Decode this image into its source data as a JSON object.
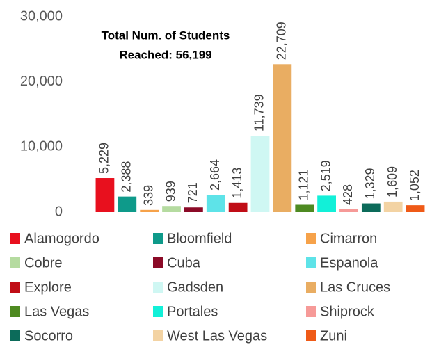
{
  "chart_data": {
    "type": "bar",
    "annotation": [
      "Total Num. of Students",
      "Reached: 56,199"
    ],
    "categories": [
      "Alamogordo",
      "Bloomfield",
      "Cimarron",
      "Cobre",
      "Cuba",
      "Espanola",
      "Explore",
      "Gadsden",
      "Las Cruces",
      "Las Vegas",
      "Portales",
      "Shiprock",
      "Socorro",
      "West Las Vegas",
      "Zuni"
    ],
    "values": [
      5229,
      2388,
      339,
      939,
      721,
      2664,
      1413,
      11739,
      22709,
      1121,
      2519,
      428,
      1329,
      1609,
      1052
    ],
    "value_labels": [
      "5,229",
      "2,388",
      "339",
      "939",
      "721",
      "2,664",
      "1,413",
      "11,739",
      "22,709",
      "1,121",
      "2,519",
      "428",
      "1,329",
      "1,609",
      "1,052"
    ],
    "colors": [
      "#e8101e",
      "#0e9a8a",
      "#f6a24a",
      "#b5dba0",
      "#8b0a27",
      "#5ee3e8",
      "#c00d16",
      "#cff7f3",
      "#e9ad62",
      "#4e8a21",
      "#12f0d8",
      "#f69a98",
      "#0c6b5a",
      "#f3d3a3",
      "#ef5a17"
    ],
    "ylim": [
      0,
      30000
    ],
    "yticks": [
      0,
      {
        "value": 10000,
        "label": "10,000"
      },
      {
        "value": 20000,
        "label": "20,000"
      },
      {
        "value": 30000,
        "label": "30,000"
      }
    ],
    "grid": false,
    "legend": "bottom"
  }
}
